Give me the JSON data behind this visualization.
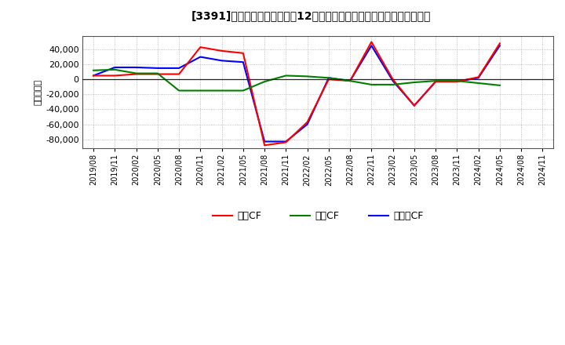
{
  "title": "[3391]　キャッシュフローの12か月移動合計の対前年同期増減額の推移",
  "ylabel": "（百万円）",
  "background_color": "#ffffff",
  "plot_bg_color": "#ffffff",
  "ylim": [
    -92000,
    58000
  ],
  "yticks": [
    -80000,
    -60000,
    -40000,
    -20000,
    0,
    20000,
    40000
  ],
  "x_labels": [
    "2019/08",
    "2019/11",
    "2020/02",
    "2020/05",
    "2020/08",
    "2020/11",
    "2021/02",
    "2021/05",
    "2021/08",
    "2021/11",
    "2022/02",
    "2022/05",
    "2022/08",
    "2022/11",
    "2023/02",
    "2023/05",
    "2023/08",
    "2023/11",
    "2024/02",
    "2024/05",
    "2024/08",
    "2024/11"
  ],
  "eigyo_cf": [
    5000,
    5000,
    7000,
    7000,
    7000,
    43000,
    38000,
    35000,
    -88000,
    -84000,
    -57000,
    0,
    -2000,
    50000,
    0,
    -35000,
    -3000,
    -3000,
    3000,
    48000,
    null,
    null
  ],
  "toshi_cf": [
    12000,
    13000,
    8000,
    8000,
    -15000,
    -15000,
    -15000,
    -15000,
    -3000,
    5000,
    4000,
    2000,
    -2000,
    -7000,
    -7000,
    -4000,
    -2000,
    -2000,
    -5000,
    -8000,
    null,
    null
  ],
  "free_cf": [
    5000,
    16000,
    16000,
    15000,
    15000,
    30000,
    25000,
    23000,
    -83000,
    -83000,
    -60000,
    2000,
    -2000,
    45000,
    -2000,
    -35000,
    -3000,
    -3000,
    2000,
    45000,
    null,
    null
  ],
  "eigyo_color": "#ff0000",
  "toshi_color": "#008000",
  "free_color": "#0000ff",
  "legend_labels": [
    "営業CF",
    "投資CF",
    "フリーCF"
  ]
}
